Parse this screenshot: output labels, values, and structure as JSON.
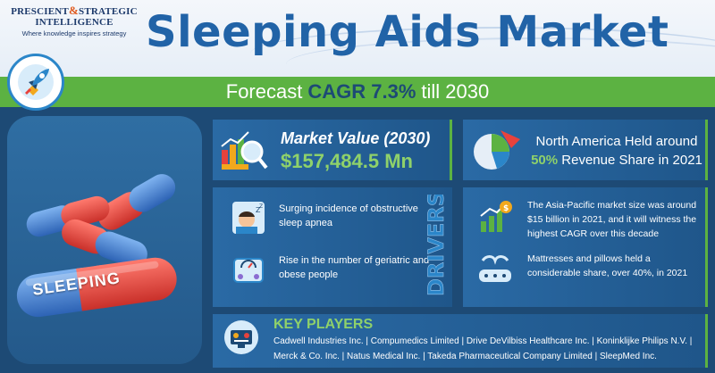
{
  "logo": {
    "line1_a": "PRESCIENT",
    "amp": "&",
    "line1_b": "STRATEGIC",
    "line2": "INTELLIGENCE",
    "tagline": "Where knowledge inspires strategy"
  },
  "title": "Sleeping Aids Market",
  "forecast": {
    "prefix": "Forecast",
    "highlight": "CAGR 7.3%",
    "suffix": "till 2030"
  },
  "pill_label": "SLEEPING",
  "market_value": {
    "title": "Market Value (2030)",
    "value": "$157,484.5 Mn"
  },
  "north_america": {
    "line1": "North America Held around",
    "highlight": "50%",
    "line2_rest": "Revenue Share in 2021"
  },
  "drivers": {
    "label": "DRIVERS",
    "items": [
      {
        "text": "Surging incidence of obstructive sleep apnea",
        "icon": "sleep-apnea-icon"
      },
      {
        "text": "Rise in the number of geriatric and obese people",
        "icon": "scale-icon"
      }
    ]
  },
  "insights": [
    {
      "text": "The Asia-Pacific market size was around $15 billion in 2021, and it will witness the highest CAGR over this decade",
      "icon": "growth-chart-icon"
    },
    {
      "text": "Mattresses and pillows held a considerable share, over 40%, in 2021",
      "icon": "mattress-icon"
    }
  ],
  "key_players": {
    "title": "KEY PLAYERS",
    "line1": "Cadwell Industries Inc. | Compumedics Limited | Drive DeVilbiss Healthcare Inc. | Koninklijke Philips N.V. |",
    "line2": "Merck & Co. Inc. | Natus Medical Inc. | Takeda Pharmaceutical Company Limited | SleepMed Inc."
  },
  "colors": {
    "navy": "#1d4a75",
    "title_blue": "#2163a7",
    "green": "#5cb242",
    "light_green": "#8fd16a",
    "pill_red": "#e8423c",
    "pill_blue": "#3b7fd4"
  }
}
